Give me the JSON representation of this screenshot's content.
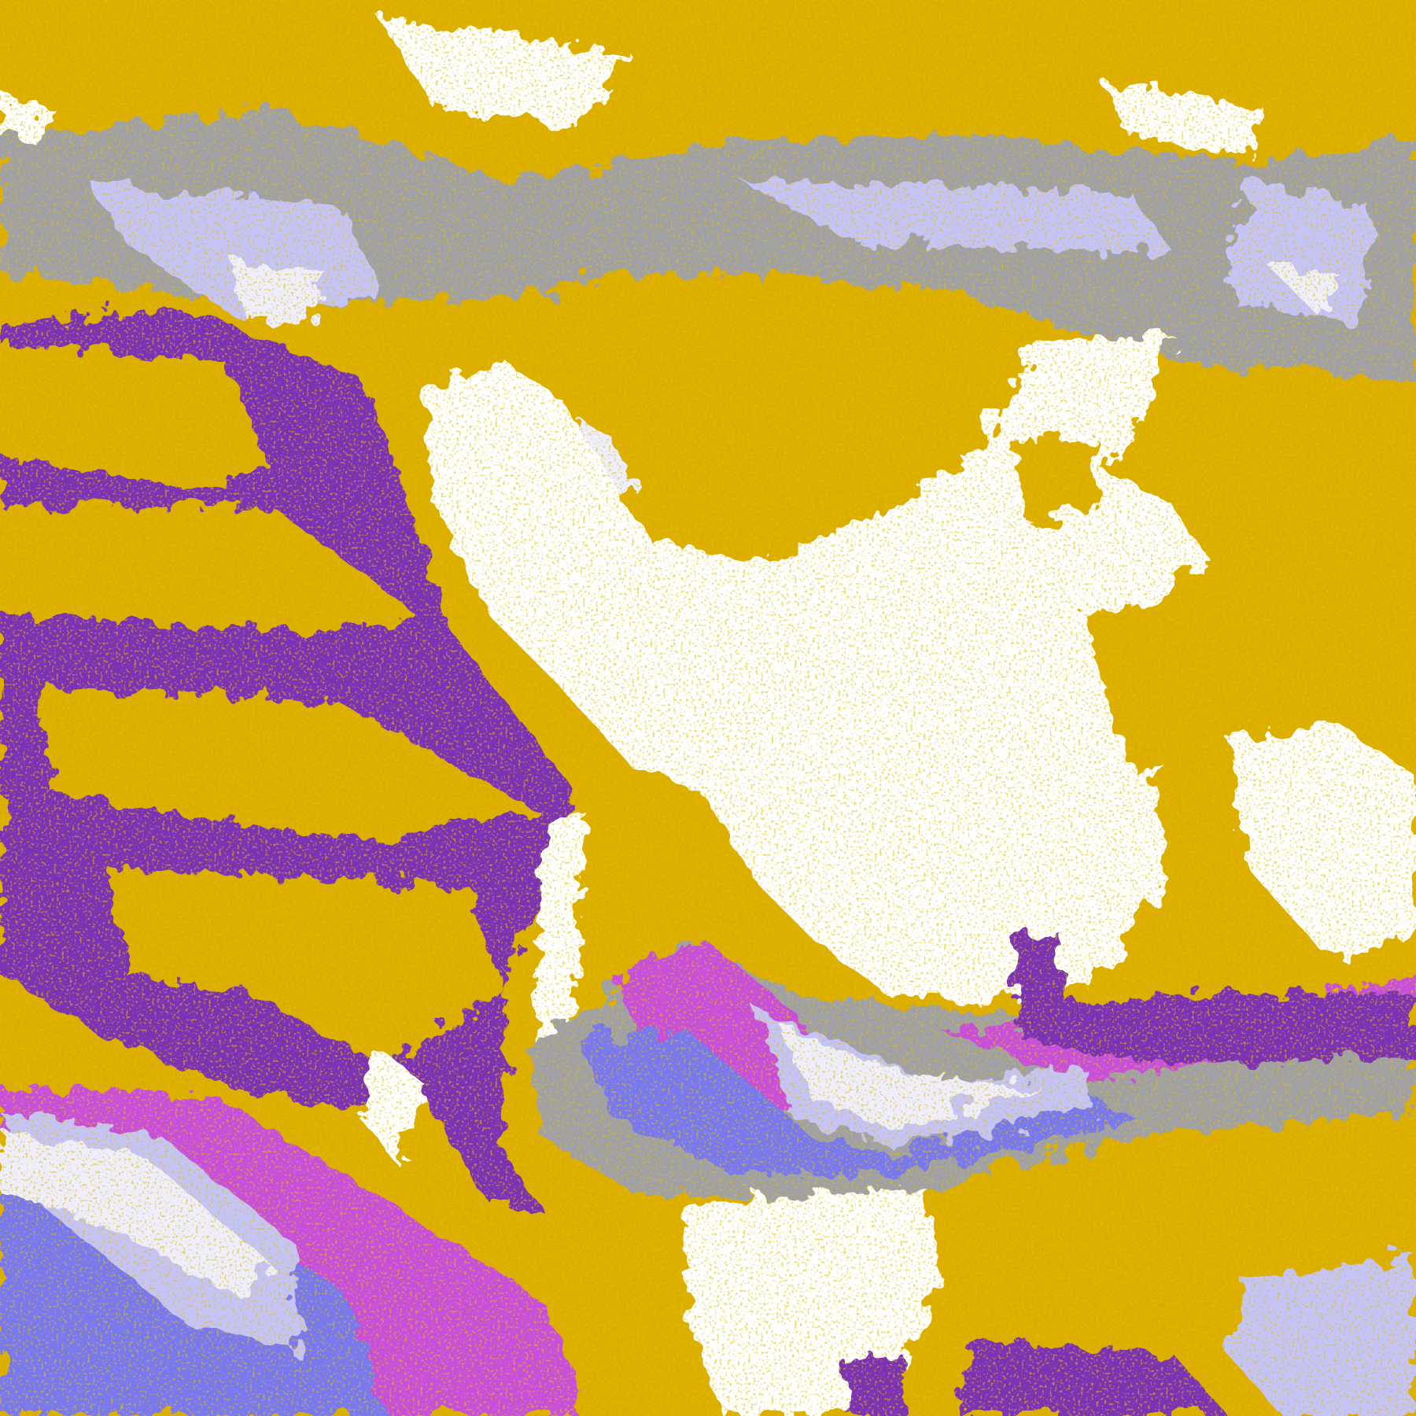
{
  "map": {
    "type": "satellite cloud classification image",
    "colors": {
      "clear": "#ffffff",
      "gold": "#dcae00",
      "dark_gold": "#c08a00",
      "purple": "#7b32b4",
      "magenta": "#c850dc",
      "blue_violet": "#7878f0",
      "light_lavender": "#c4c4fa",
      "pale_lavender": "#eeeeff",
      "gray": "#a0a0a8"
    }
  }
}
